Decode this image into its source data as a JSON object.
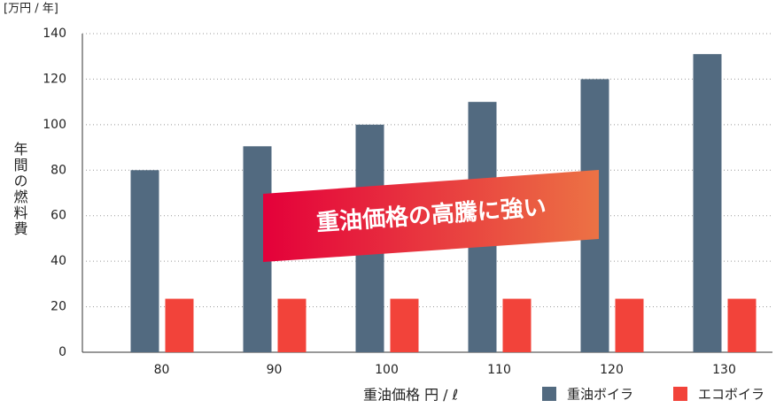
{
  "chart_data": {
    "type": "bar",
    "unit_label": "[万円 / 年]",
    "y_label": "年間の燃料費",
    "x_label": "重油価格 円 / ℓ",
    "annotation": "重油価格の高騰に強い",
    "categories": [
      "80",
      "90",
      "100",
      "110",
      "120",
      "130"
    ],
    "series": [
      {
        "name": "重油ボイラ",
        "color": "#526a80",
        "values": [
          80,
          90.5,
          100,
          110,
          120,
          131
        ]
      },
      {
        "name": "エコボイラ",
        "color": "#f2433a",
        "values": [
          23.5,
          23.5,
          23.5,
          23.5,
          23.5,
          23.5
        ]
      }
    ],
    "ylim": [
      0,
      140
    ],
    "yticks": [
      0,
      20,
      40,
      60,
      80,
      100,
      120,
      140
    ],
    "grid": true
  }
}
